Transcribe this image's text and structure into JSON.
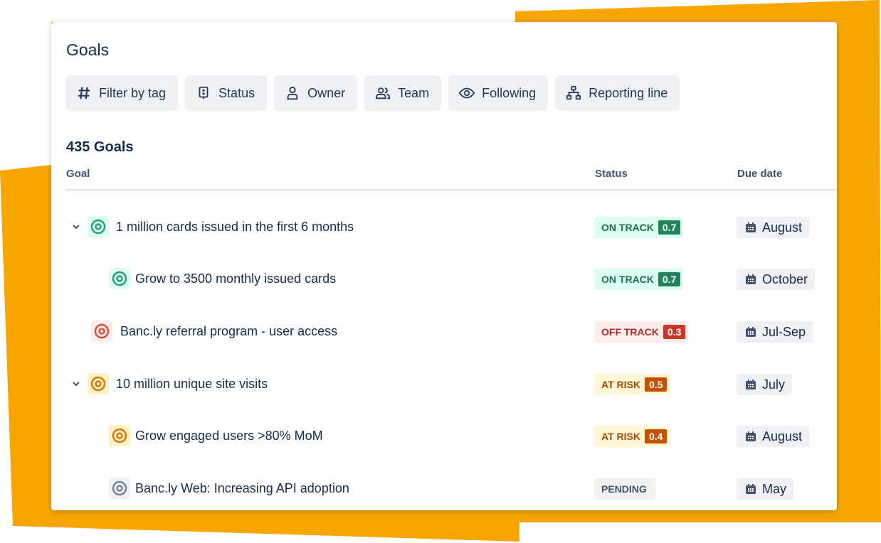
{
  "page": {
    "title": "Goals",
    "goal_count": "435 Goals",
    "accent": "#f8a500"
  },
  "filters": [
    {
      "label": "Filter by tag",
      "icon": "hash-icon"
    },
    {
      "label": "Status",
      "icon": "status-icon"
    },
    {
      "label": "Owner",
      "icon": "person-icon"
    },
    {
      "label": "Team",
      "icon": "people-icon"
    },
    {
      "label": "Following",
      "icon": "eye-icon"
    },
    {
      "label": "Reporting line",
      "icon": "hierarchy-icon"
    }
  ],
  "columns": {
    "goal": "Goal",
    "status": "Status",
    "due": "Due date"
  },
  "rows": [
    {
      "name": "1 million cards issued in the first 6 months",
      "status": "ON TRACK",
      "score": "0.7",
      "due": "August",
      "expanded": true,
      "color": "#22a06b"
    },
    {
      "name": "Grow to 3500 monthly issued cards",
      "status": "ON TRACK",
      "score": "0.7",
      "due": "October",
      "color": "#22a06b"
    },
    {
      "name": "Banc.ly referral program - user access",
      "status": "OFF TRACK",
      "score": "0.3",
      "due": "Jul-Sep",
      "color": "#e34935"
    },
    {
      "name": "10 million unique site visits",
      "status": "AT RISK",
      "score": "0.5",
      "due": "July",
      "expanded": true,
      "color": "#d97008"
    },
    {
      "name": "Grow engaged users >80% MoM",
      "status": "AT RISK",
      "score": "0.4",
      "due": "August",
      "color": "#d97008"
    },
    {
      "name": "Banc.ly Web: Increasing API adoption",
      "status": "PENDING",
      "score": "",
      "due": "May",
      "color": "#758195"
    }
  ]
}
